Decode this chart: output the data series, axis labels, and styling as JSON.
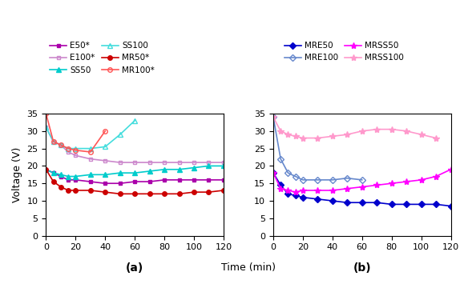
{
  "time_a": [
    0,
    5,
    10,
    15,
    20,
    30,
    40,
    50,
    60,
    70,
    80,
    90,
    100,
    110,
    120
  ],
  "E50": [
    19,
    18,
    17,
    16,
    16,
    15.5,
    15,
    15,
    15.5,
    15.5,
    16,
    16,
    16,
    16,
    16
  ],
  "E100": [
    31,
    27,
    26,
    24,
    23,
    22,
    21.5,
    21,
    21,
    21,
    21,
    21,
    21,
    21,
    21
  ],
  "SS50": [
    19,
    18,
    17.5,
    17,
    17,
    17.5,
    17.5,
    18,
    18,
    18.5,
    19,
    19,
    19.5,
    20,
    20
  ],
  "SS100": [
    31,
    27,
    26,
    25,
    25,
    25,
    25.5,
    29,
    33,
    null,
    null,
    null,
    null,
    null,
    null
  ],
  "MR50": [
    19,
    15.5,
    14,
    13,
    13,
    13,
    12.5,
    12,
    12,
    12,
    12,
    12,
    12.5,
    12.5,
    13
  ],
  "MR100": [
    35,
    27,
    26,
    25,
    24.5,
    24,
    30,
    null,
    null,
    null,
    null,
    null,
    null,
    null,
    null
  ],
  "time_b": [
    0,
    5,
    10,
    15,
    20,
    30,
    40,
    50,
    60,
    70,
    80,
    90,
    100,
    110,
    120
  ],
  "MRE50": [
    18,
    14.5,
    12,
    11.5,
    11,
    10.5,
    10,
    9.5,
    9.5,
    9.5,
    9,
    9,
    9,
    9,
    8.5
  ],
  "MRE100": [
    34,
    22,
    18,
    17,
    16,
    16,
    16,
    16.5,
    16,
    null,
    null,
    null,
    null,
    null,
    null
  ],
  "MRSS50": [
    18,
    13.5,
    13,
    12.5,
    13,
    13,
    13,
    13.5,
    14,
    14.5,
    15,
    15.5,
    16,
    17,
    19
  ],
  "MRSS100": [
    34,
    30,
    29,
    28.5,
    28,
    28,
    28.5,
    29,
    30,
    30.5,
    30.5,
    30,
    29,
    28,
    null
  ],
  "ylim": [
    0,
    35
  ],
  "xlim": [
    0,
    120
  ],
  "ylabel": "Voltage (V)",
  "xlabel": "Time (min)",
  "label_a": "(a)",
  "label_b": "(b)",
  "color_E50": "#AA00AA",
  "color_E100": "#CC88CC",
  "color_SS50": "#00CCCC",
  "color_SS100": "#44DDDD",
  "color_MR50": "#CC0000",
  "color_MR100": "#FF5555",
  "color_MRE50": "#0000CC",
  "color_MRE100": "#6688CC",
  "color_MRSS50": "#FF00FF",
  "color_MRSS100": "#FF99CC"
}
